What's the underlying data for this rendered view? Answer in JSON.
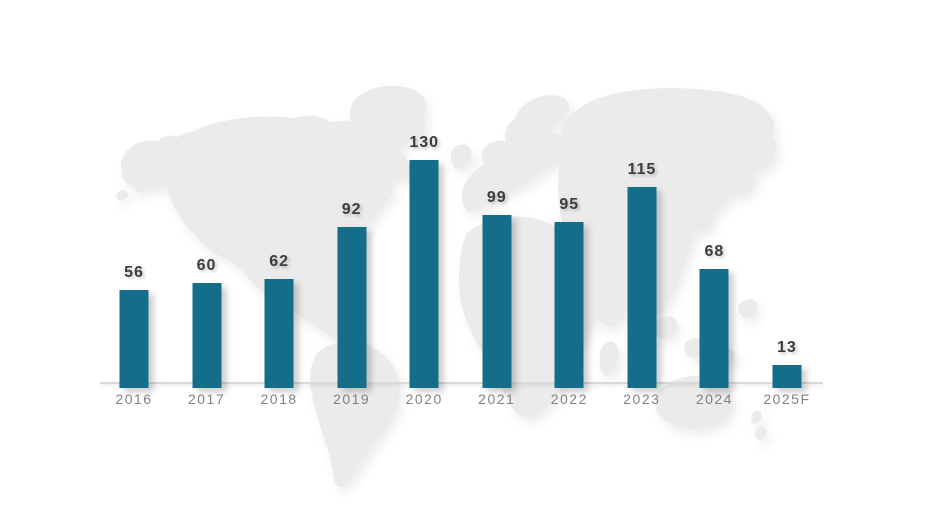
{
  "chart_data": {
    "type": "bar",
    "title": "",
    "xlabel": "",
    "ylabel": "",
    "categories": [
      "2016",
      "2017",
      "2018",
      "2019",
      "2020",
      "2021",
      "2022",
      "2023",
      "2024",
      "2025F"
    ],
    "values": [
      56,
      60,
      62,
      92,
      130,
      99,
      95,
      115,
      68,
      13
    ],
    "ylim": [
      0,
      140
    ],
    "grid": false,
    "legend": null,
    "value_labels_shown": true,
    "background_image": "world-map-silhouette",
    "bar_color": "#146e8a",
    "value_label_color": "#3d3d3d",
    "axis_label_color": "#808285",
    "axis_line_color": "#d9d9d9",
    "map_color": "#ebebeb"
  }
}
